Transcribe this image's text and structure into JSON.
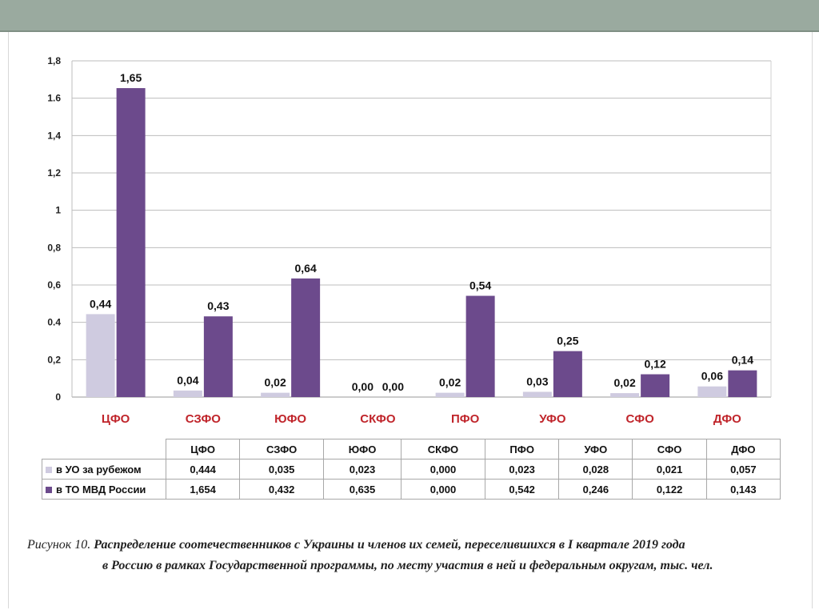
{
  "chart_data": {
    "type": "bar",
    "categories": [
      "ЦФО",
      "СЗФО",
      "ЮФО",
      "СКФО",
      "ПФО",
      "УФО",
      "СФО",
      "ДФО"
    ],
    "series": [
      {
        "name": "в УО за рубежом",
        "color": "#cfcbe0",
        "values": [
          0.444,
          0.035,
          0.023,
          0.0,
          0.023,
          0.028,
          0.021,
          0.057
        ],
        "labels": [
          "0,44",
          "0,04",
          "0,02",
          "0,00",
          "0,02",
          "0,03",
          "0,02",
          "0,06"
        ],
        "table_values": [
          "0,444",
          "0,035",
          "0,023",
          "0,000",
          "0,023",
          "0,028",
          "0,021",
          "0,057"
        ]
      },
      {
        "name": "в ТО МВД России",
        "color": "#6c4a8c",
        "values": [
          1.654,
          0.432,
          0.635,
          0.0,
          0.542,
          0.246,
          0.122,
          0.143
        ],
        "labels": [
          "1,65",
          "0,43",
          "0,64",
          "0,00",
          "0,54",
          "0,25",
          "0,12",
          "0,14"
        ],
        "table_values": [
          "1,654",
          "0,432",
          "0,635",
          "0,000",
          "0,542",
          "0,246",
          "0,122",
          "0,143"
        ]
      }
    ],
    "yticks": [
      "0",
      "0,2",
      "0.4",
      "0,6",
      "0,8",
      "1",
      "1,2",
      "1,4",
      "1.6",
      "1,8"
    ],
    "ylim": [
      0,
      1.8
    ],
    "grid": true,
    "category_label_color": "#c0252b",
    "legend": "table-below"
  },
  "caption": {
    "lead": "Рисунок 10.",
    "line1": "Распределение соотечественников с Украины и членов их семей, переселившихся в I квартале 2019 года",
    "line2": "в Россию в рамках Государственной программы, по месту участия в ней и федеральным округам, тыс. чел."
  }
}
